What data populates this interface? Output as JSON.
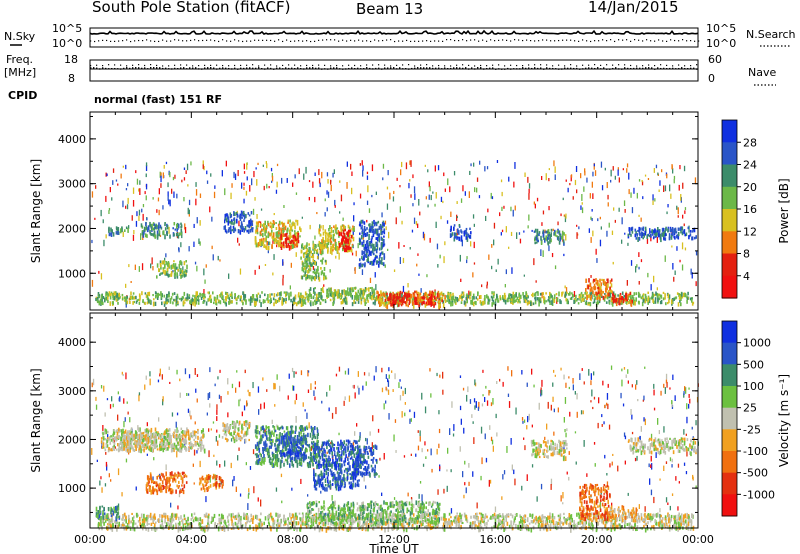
{
  "header": {
    "station": "South Pole Station (fitACF)",
    "beam": "Beam 13",
    "date": "14/Jan/2015"
  },
  "noise_panel": {
    "left_label_a": "N.Sky",
    "right_label": "N.Search",
    "ticks_left": [
      "10^5",
      "10^0"
    ],
    "ticks_right": [
      "10^5",
      "10^0"
    ]
  },
  "freq_panel": {
    "left_label_a": "Freq.",
    "left_label_b": "[MHz]",
    "right_label": "Nave",
    "ticks_left": [
      "18",
      "8"
    ],
    "ticks_right": [
      "60",
      "0"
    ]
  },
  "cpid": {
    "label": "CPID",
    "value": "normal (fast) 151 RF"
  },
  "chart_data": [
    {
      "type": "heatmap",
      "title": "",
      "ylabel": "Slant Range [km]",
      "xlabel": "",
      "ylim": [
        180,
        4600
      ],
      "yticks": [
        1000,
        2000,
        3000,
        4000
      ],
      "xlim": [
        0,
        24
      ],
      "xtick_labels": [
        "00:00",
        "04:00",
        "08:00",
        "12:00",
        "16:00",
        "20:00",
        "00:00"
      ],
      "colorbar": {
        "label": "Power [dB]",
        "ticks": [
          "4",
          "8",
          "12",
          "16",
          "20",
          "24",
          "28"
        ],
        "colors": [
          "#1030e0",
          "#2a55c8",
          "#3c8c6a",
          "#6cb848",
          "#d8c020",
          "#f07a10",
          "#e42010",
          "#f01010"
        ]
      },
      "regions": [
        {
          "t0": 0.2,
          "t1": 23.8,
          "r0": 350,
          "r1": 600,
          "v": 3
        },
        {
          "t0": 2.0,
          "t1": 3.6,
          "r0": 1850,
          "r1": 2150,
          "v": 2
        },
        {
          "t0": 0.7,
          "t1": 1.5,
          "r0": 1900,
          "r1": 2050,
          "v": 2
        },
        {
          "t0": 2.6,
          "t1": 3.8,
          "r0": 950,
          "r1": 1300,
          "v": 3
        },
        {
          "t0": 5.3,
          "t1": 6.4,
          "r0": 1950,
          "r1": 2400,
          "v": 1
        },
        {
          "t0": 6.5,
          "t1": 8.3,
          "r0": 1600,
          "r1": 2200,
          "v": 4
        },
        {
          "t0": 7.5,
          "t1": 8.2,
          "r0": 1600,
          "r1": 1900,
          "v": 6
        },
        {
          "t0": 8.3,
          "t1": 9.3,
          "r0": 900,
          "r1": 1700,
          "v": 3
        },
        {
          "t0": 9.0,
          "t1": 10.4,
          "r0": 1500,
          "r1": 2100,
          "v": 4
        },
        {
          "t0": 9.8,
          "t1": 10.3,
          "r0": 1550,
          "r1": 2000,
          "v": 7
        },
        {
          "t0": 10.6,
          "t1": 11.6,
          "r0": 1200,
          "r1": 2200,
          "v": 1
        },
        {
          "t0": 8.6,
          "t1": 11.2,
          "r0": 500,
          "r1": 700,
          "v": 3
        },
        {
          "t0": 11.3,
          "t1": 14.0,
          "r0": 300,
          "r1": 620,
          "v": 5
        },
        {
          "t0": 11.8,
          "t1": 13.6,
          "r0": 350,
          "r1": 560,
          "v": 6
        },
        {
          "t0": 14.2,
          "t1": 15.0,
          "r0": 1800,
          "r1": 2100,
          "v": 1
        },
        {
          "t0": 17.5,
          "t1": 18.7,
          "r0": 1700,
          "r1": 2000,
          "v": 2
        },
        {
          "t0": 19.5,
          "t1": 20.6,
          "r0": 450,
          "r1": 900,
          "v": 5
        },
        {
          "t0": 20.6,
          "t1": 21.4,
          "r0": 350,
          "r1": 600,
          "v": 6
        },
        {
          "t0": 21.2,
          "t1": 23.9,
          "r0": 1800,
          "r1": 2050,
          "v": 1
        }
      ]
    },
    {
      "type": "heatmap",
      "title": "",
      "ylabel": "Slant Range [km]",
      "xlabel": "Time UT",
      "ylim": [
        180,
        4600
      ],
      "yticks": [
        1000,
        2000,
        3000,
        4000
      ],
      "xlim": [
        0,
        24
      ],
      "xtick_labels": [
        "00:00",
        "04:00",
        "08:00",
        "12:00",
        "16:00",
        "20:00",
        "00:00"
      ],
      "colorbar": {
        "label": "Velocity [m s^-1]",
        "ticks": [
          "1000",
          "500",
          "100",
          "25",
          "-25",
          "-100",
          "-500",
          "-1000"
        ],
        "colors": [
          "#1030e0",
          "#2a55c8",
          "#3c8c6a",
          "#6cc040",
          "#c0c0b0",
          "#f0a020",
          "#f07010",
          "#e43010",
          "#f01010"
        ]
      },
      "regions": [
        {
          "t0": 0.3,
          "t1": 23.8,
          "r0": 180,
          "r1": 500,
          "v": 4
        },
        {
          "t0": 0.2,
          "t1": 1.2,
          "r0": 400,
          "r1": 650,
          "v": 2
        },
        {
          "t0": 0.4,
          "t1": 4.5,
          "r0": 1800,
          "r1": 2250,
          "v": 4
        },
        {
          "t0": 1.2,
          "t1": 3.6,
          "r0": 1800,
          "r1": 2150,
          "v": 4
        },
        {
          "t0": 2.2,
          "t1": 3.8,
          "r0": 950,
          "r1": 1350,
          "v": 6
        },
        {
          "t0": 4.3,
          "t1": 5.2,
          "r0": 1000,
          "r1": 1300,
          "v": 6
        },
        {
          "t0": 5.2,
          "t1": 6.3,
          "r0": 2000,
          "r1": 2400,
          "v": 4
        },
        {
          "t0": 6.5,
          "t1": 9.0,
          "r0": 1500,
          "r1": 2300,
          "v": 2
        },
        {
          "t0": 7.5,
          "t1": 8.5,
          "r0": 1700,
          "r1": 2100,
          "v": 1
        },
        {
          "t0": 8.8,
          "t1": 10.6,
          "r0": 1000,
          "r1": 2000,
          "v": 1
        },
        {
          "t0": 10.3,
          "t1": 11.3,
          "r0": 1300,
          "r1": 1900,
          "v": 1
        },
        {
          "t0": 8.5,
          "t1": 13.8,
          "r0": 300,
          "r1": 750,
          "v": 3
        },
        {
          "t0": 17.4,
          "t1": 18.8,
          "r0": 1650,
          "r1": 2000,
          "v": 4
        },
        {
          "t0": 19.3,
          "t1": 20.5,
          "r0": 400,
          "r1": 1100,
          "v": 6
        },
        {
          "t0": 20.5,
          "t1": 21.6,
          "r0": 350,
          "r1": 650,
          "v": 5
        },
        {
          "t0": 21.2,
          "t1": 23.9,
          "r0": 1750,
          "r1": 2050,
          "v": 4
        }
      ]
    }
  ]
}
